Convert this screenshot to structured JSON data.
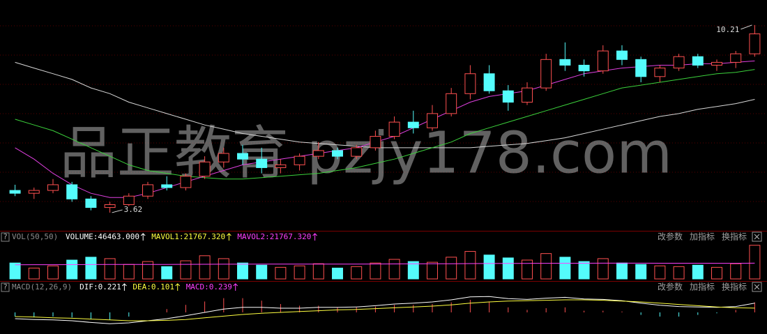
{
  "watermark": "品正教育 pzjy178.com",
  "help": "?",
  "toolbar": [
    "改参数",
    "加指标",
    "换指标"
  ],
  "chart_data": [
    {
      "type": "candlestick",
      "open": [
        4.4,
        4.3,
        4.4,
        4.6,
        4.1,
        3.8,
        3.9,
        4.2,
        4.6,
        4.5,
        4.9,
        5.4,
        5.7,
        5.5,
        5.2,
        5.3,
        5.6,
        5.8,
        5.6,
        5.9,
        6.3,
        6.8,
        6.6,
        7.1,
        7.8,
        8.5,
        7.9,
        7.5,
        8.0,
        9.0,
        8.8,
        8.6,
        9.3,
        9.0,
        8.4,
        8.7,
        9.1,
        8.8,
        8.9,
        9.2
      ],
      "high": [
        4.6,
        4.5,
        4.8,
        4.7,
        4.2,
        4.0,
        4.3,
        4.7,
        4.9,
        5.0,
        5.6,
        5.9,
        6.0,
        5.9,
        5.5,
        5.7,
        6.1,
        5.9,
        6.0,
        6.5,
        7.0,
        7.2,
        7.4,
        8.0,
        8.8,
        8.8,
        8.1,
        8.2,
        9.2,
        9.6,
        9.0,
        9.5,
        9.5,
        9.1,
        8.8,
        9.2,
        9.2,
        9.0,
        9.3,
        10.21
      ],
      "low": [
        4.2,
        4.1,
        4.3,
        4.0,
        3.7,
        3.62,
        3.85,
        4.1,
        4.4,
        4.4,
        4.8,
        5.2,
        5.3,
        5.0,
        5.0,
        5.1,
        5.5,
        5.5,
        5.5,
        5.8,
        6.2,
        6.4,
        6.5,
        7.0,
        7.6,
        7.8,
        7.2,
        7.4,
        7.9,
        8.6,
        8.4,
        8.5,
        8.8,
        8.2,
        8.2,
        8.6,
        8.7,
        8.6,
        8.7,
        9.1
      ],
      "close": [
        4.3,
        4.4,
        4.6,
        4.1,
        3.8,
        3.9,
        4.2,
        4.6,
        4.5,
        4.9,
        5.4,
        5.7,
        5.5,
        5.2,
        5.3,
        5.6,
        5.8,
        5.6,
        5.9,
        6.3,
        6.8,
        6.6,
        7.1,
        7.8,
        8.5,
        7.9,
        7.5,
        8.0,
        9.0,
        8.8,
        8.6,
        9.3,
        9.0,
        8.4,
        8.7,
        9.1,
        8.8,
        8.9,
        9.2,
        9.9
      ],
      "up_color": "#ff5050",
      "down_color": "#54fcfc",
      "ylim": [
        3.3,
        10.6
      ],
      "lines": [
        {
          "color": "#d8d8d8",
          "values": [
            8.9,
            8.7,
            8.5,
            8.3,
            8.0,
            7.8,
            7.5,
            7.3,
            7.1,
            6.9,
            6.7,
            6.55,
            6.4,
            6.3,
            6.2,
            6.1,
            6.05,
            6.0,
            5.95,
            5.9,
            5.9,
            5.9,
            5.9,
            5.9,
            5.9,
            5.95,
            6.0,
            6.05,
            6.15,
            6.25,
            6.4,
            6.55,
            6.7,
            6.85,
            7.0,
            7.1,
            7.25,
            7.35,
            7.45,
            7.6
          ]
        },
        {
          "color": "#3cd23c",
          "values": [
            6.9,
            6.7,
            6.5,
            6.2,
            5.9,
            5.6,
            5.3,
            5.1,
            5.0,
            4.9,
            4.85,
            4.8,
            4.8,
            4.85,
            4.9,
            4.95,
            5.0,
            5.1,
            5.2,
            5.35,
            5.5,
            5.7,
            5.9,
            6.1,
            6.4,
            6.6,
            6.8,
            7.0,
            7.2,
            7.4,
            7.6,
            7.8,
            8.0,
            8.1,
            8.2,
            8.3,
            8.4,
            8.5,
            8.55,
            8.65
          ]
        },
        {
          "color": "#e040e0",
          "values": [
            5.9,
            5.5,
            5.0,
            4.6,
            4.3,
            4.15,
            4.15,
            4.3,
            4.5,
            4.7,
            4.9,
            5.1,
            5.3,
            5.4,
            5.5,
            5.6,
            5.7,
            5.8,
            5.9,
            6.1,
            6.3,
            6.6,
            6.9,
            7.2,
            7.5,
            7.7,
            7.8,
            7.9,
            8.1,
            8.3,
            8.5,
            8.6,
            8.7,
            8.75,
            8.8,
            8.8,
            8.85,
            8.85,
            8.9,
            8.95
          ]
        }
      ],
      "annotations": [
        10.21,
        3.62
      ]
    },
    {
      "type": "volume",
      "title": "VOL(50,50)",
      "readouts": [
        {
          "text": "VOLUME:46463.000",
          "color": "#ffffff"
        },
        {
          "text": "MAVOL1:21767.320",
          "color": "#ffff40"
        },
        {
          "text": "MAVOL2:21767.320",
          "color": "#ff40ff"
        }
      ],
      "values": [
        22000,
        15000,
        18000,
        26000,
        30000,
        28000,
        20000,
        24000,
        17000,
        25000,
        32000,
        28000,
        22000,
        19000,
        16000,
        18000,
        21000,
        15000,
        17000,
        22000,
        27000,
        24000,
        23000,
        30000,
        38000,
        33000,
        29000,
        26000,
        35000,
        30000,
        24000,
        28000,
        22000,
        20000,
        18000,
        17000,
        19000,
        16000,
        21000,
        46463
      ],
      "ylim": [
        0,
        52000
      ],
      "lines": [
        {
          "color": "#ff40ff",
          "values": [
            19500,
            19600,
            19600,
            19700,
            19800,
            19900,
            19900,
            20000,
            20000,
            20100,
            20200,
            20300,
            20300,
            20400,
            20400,
            20400,
            20500,
            20500,
            20500,
            20600,
            20700,
            20800,
            20900,
            21000,
            21200,
            21300,
            21400,
            21500,
            21600,
            21700,
            21700,
            21800,
            21800,
            21800,
            21700,
            21700,
            21700,
            21600,
            21600,
            21767.32
          ]
        }
      ]
    },
    {
      "type": "macd",
      "title": "MACD(12,26,9)",
      "readouts": [
        {
          "text": "DIF:0.221",
          "color": "#ffffff"
        },
        {
          "text": "DEA:0.101",
          "color": "#ffff40"
        },
        {
          "text": "MACD:0.239",
          "color": "#ff40ff"
        }
      ],
      "values": [
        -0.1,
        -0.12,
        -0.1,
        -0.12,
        -0.16,
        -0.18,
        -0.1,
        0.0,
        0.08,
        0.18,
        0.26,
        0.34,
        0.34,
        0.28,
        0.2,
        0.16,
        0.16,
        0.12,
        0.12,
        0.14,
        0.18,
        0.18,
        0.2,
        0.24,
        0.3,
        0.26,
        0.12,
        0.06,
        0.1,
        0.12,
        0.04,
        0.04,
        0.02,
        -0.06,
        -0.1,
        -0.1,
        -0.06,
        -0.02,
        0.06,
        0.239
      ],
      "ylim": [
        -0.5,
        0.5
      ],
      "lines": [
        {
          "color": "#ffffff",
          "values": [
            -0.15,
            -0.17,
            -0.18,
            -0.2,
            -0.24,
            -0.27,
            -0.25,
            -0.2,
            -0.15,
            -0.08,
            0.0,
            0.08,
            0.12,
            0.12,
            0.1,
            0.1,
            0.12,
            0.12,
            0.13,
            0.16,
            0.2,
            0.22,
            0.25,
            0.3,
            0.37,
            0.38,
            0.33,
            0.31,
            0.34,
            0.36,
            0.32,
            0.31,
            0.28,
            0.22,
            0.17,
            0.14,
            0.13,
            0.12,
            0.14,
            0.221
          ]
        },
        {
          "color": "#ffff40",
          "values": [
            -0.1,
            -0.11,
            -0.13,
            -0.14,
            -0.16,
            -0.18,
            -0.2,
            -0.2,
            -0.19,
            -0.17,
            -0.13,
            -0.09,
            -0.05,
            -0.02,
            0.0,
            0.02,
            0.04,
            0.06,
            0.07,
            0.09,
            0.11,
            0.13,
            0.15,
            0.18,
            0.22,
            0.25,
            0.27,
            0.28,
            0.29,
            0.3,
            0.3,
            0.29,
            0.27,
            0.25,
            0.22,
            0.19,
            0.16,
            0.13,
            0.11,
            0.101
          ]
        }
      ]
    }
  ]
}
